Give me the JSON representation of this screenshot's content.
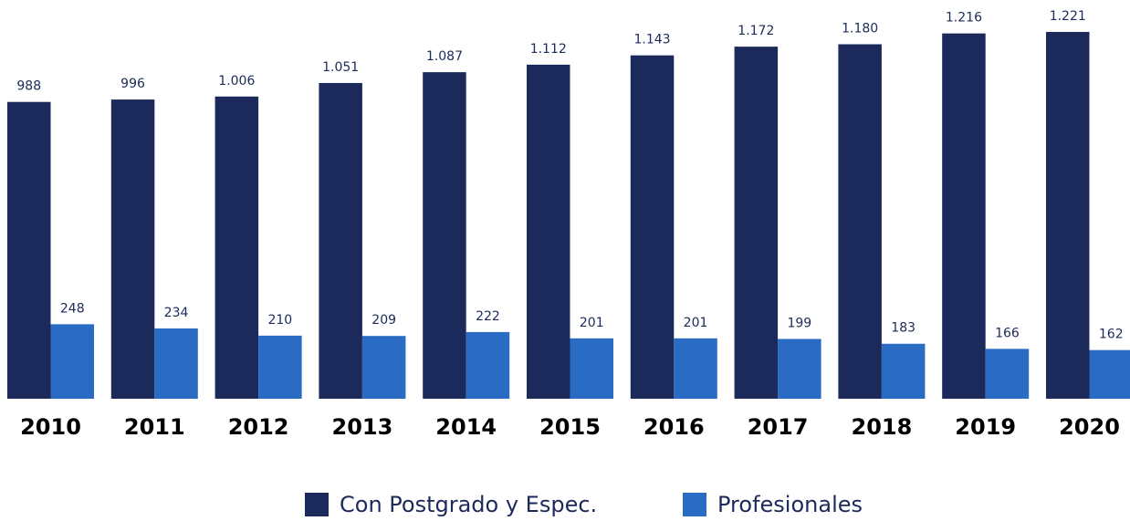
{
  "chart_data": {
    "type": "bar",
    "categories": [
      "2010",
      "2011",
      "2012",
      "2013",
      "2014",
      "2015",
      "2016",
      "2017",
      "2018",
      "2019",
      "2020"
    ],
    "series": [
      {
        "name": "Con Postgrado y Espec.",
        "color": "#1b2a5a",
        "values": [
          988,
          996,
          1006,
          1051,
          1087,
          1112,
          1143,
          1172,
          1180,
          1216,
          1221
        ],
        "value_labels": [
          "988",
          "996",
          "1.006",
          "1.051",
          "1.087",
          "1.112",
          "1.143",
          "1.172",
          "1.180",
          "1.216",
          "1.221"
        ]
      },
      {
        "name": "Profesionales",
        "color": "#2a6cc4",
        "values": [
          248,
          234,
          210,
          209,
          222,
          201,
          201,
          199,
          183,
          166,
          162
        ],
        "value_labels": [
          "248",
          "234",
          "210",
          "209",
          "222",
          "201",
          "201",
          "199",
          "183",
          "166",
          "162"
        ]
      }
    ],
    "legend": "bottom"
  }
}
